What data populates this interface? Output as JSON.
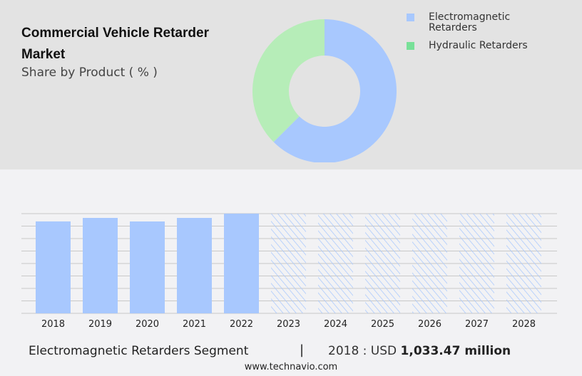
{
  "title": "Commercial Vehicle Retarder Market",
  "subtitle": "Share by Product ( % )",
  "colors": {
    "electromagnetic": "#a8c8fe",
    "hydraulic": "#b6edb8",
    "hydraulic_legend": "#78e098",
    "grid": "#c8c8c8"
  },
  "chart_data": [
    {
      "type": "pie",
      "donut": true,
      "series": [
        {
          "name": "Electromagnetic Retarders",
          "value": 62.5
        },
        {
          "name": "Hydraulic Retarders",
          "value": 37.5
        }
      ],
      "legend": "top-right",
      "legend_labels": [
        "Electromagnetic Retarders",
        "Hydraulic Retarders"
      ]
    },
    {
      "type": "bar",
      "categories": [
        "2018",
        "2019",
        "2020",
        "2021",
        "2022",
        "2023",
        "2024",
        "2025",
        "2026",
        "2027",
        "2028"
      ],
      "values": [
        1033.47,
        1073,
        1033,
        1073,
        1121,
        null,
        null,
        null,
        null,
        null,
        null
      ],
      "forecast": [
        false,
        false,
        false,
        false,
        false,
        true,
        true,
        true,
        true,
        true,
        true
      ],
      "ylim": [
        0,
        1121
      ],
      "grid": true,
      "xlabel": "",
      "ylabel": ""
    }
  ],
  "footer": {
    "segment": "Electromagnetic Retarders Segment",
    "separator": "|",
    "year_label": "2018 : USD",
    "value": "1,033.47 million",
    "site": "www.technavio.com"
  }
}
